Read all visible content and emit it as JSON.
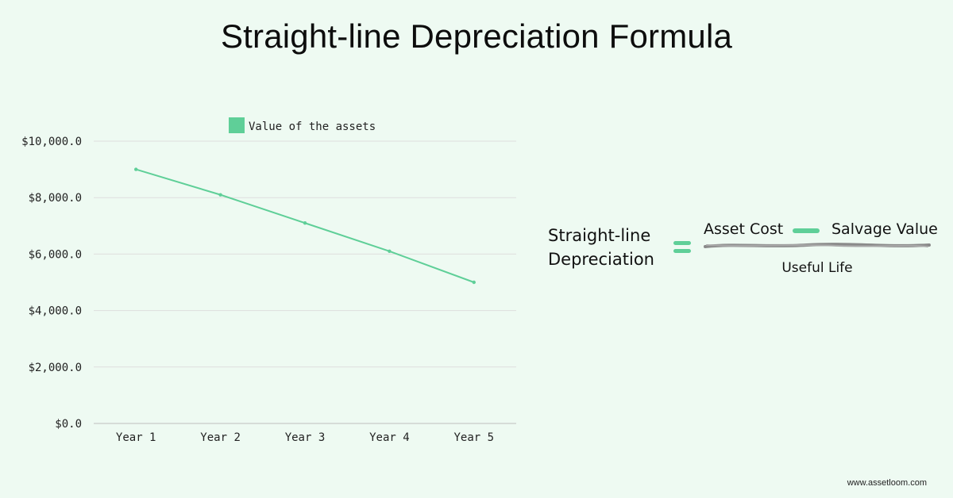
{
  "title": "Straight-line Depreciation Formula",
  "chart_data": {
    "type": "line",
    "categories": [
      "Year 1",
      "Year 2",
      "Year 3",
      "Year 4",
      "Year 5"
    ],
    "series": [
      {
        "name": "Value of the assets",
        "values": [
          9000,
          8100,
          7100,
          6100,
          5000
        ]
      }
    ],
    "yticks": [
      "$0.0",
      "$2,000.0",
      "$4,000.0",
      "$6,000.0",
      "$8,000.0",
      "$10,000.0"
    ],
    "ylim": [
      0,
      10000
    ],
    "grid": true,
    "legend_position": "top",
    "color": "#5fcf98"
  },
  "formula": {
    "lhs_line1": "Straight-line",
    "lhs_line2": "Depreciation",
    "numerator_left": "Asset Cost",
    "numerator_right": "Salvage Value",
    "denominator": "Useful Life",
    "accent_color": "#5fcf98"
  },
  "watermark": "www.assetloom.com"
}
